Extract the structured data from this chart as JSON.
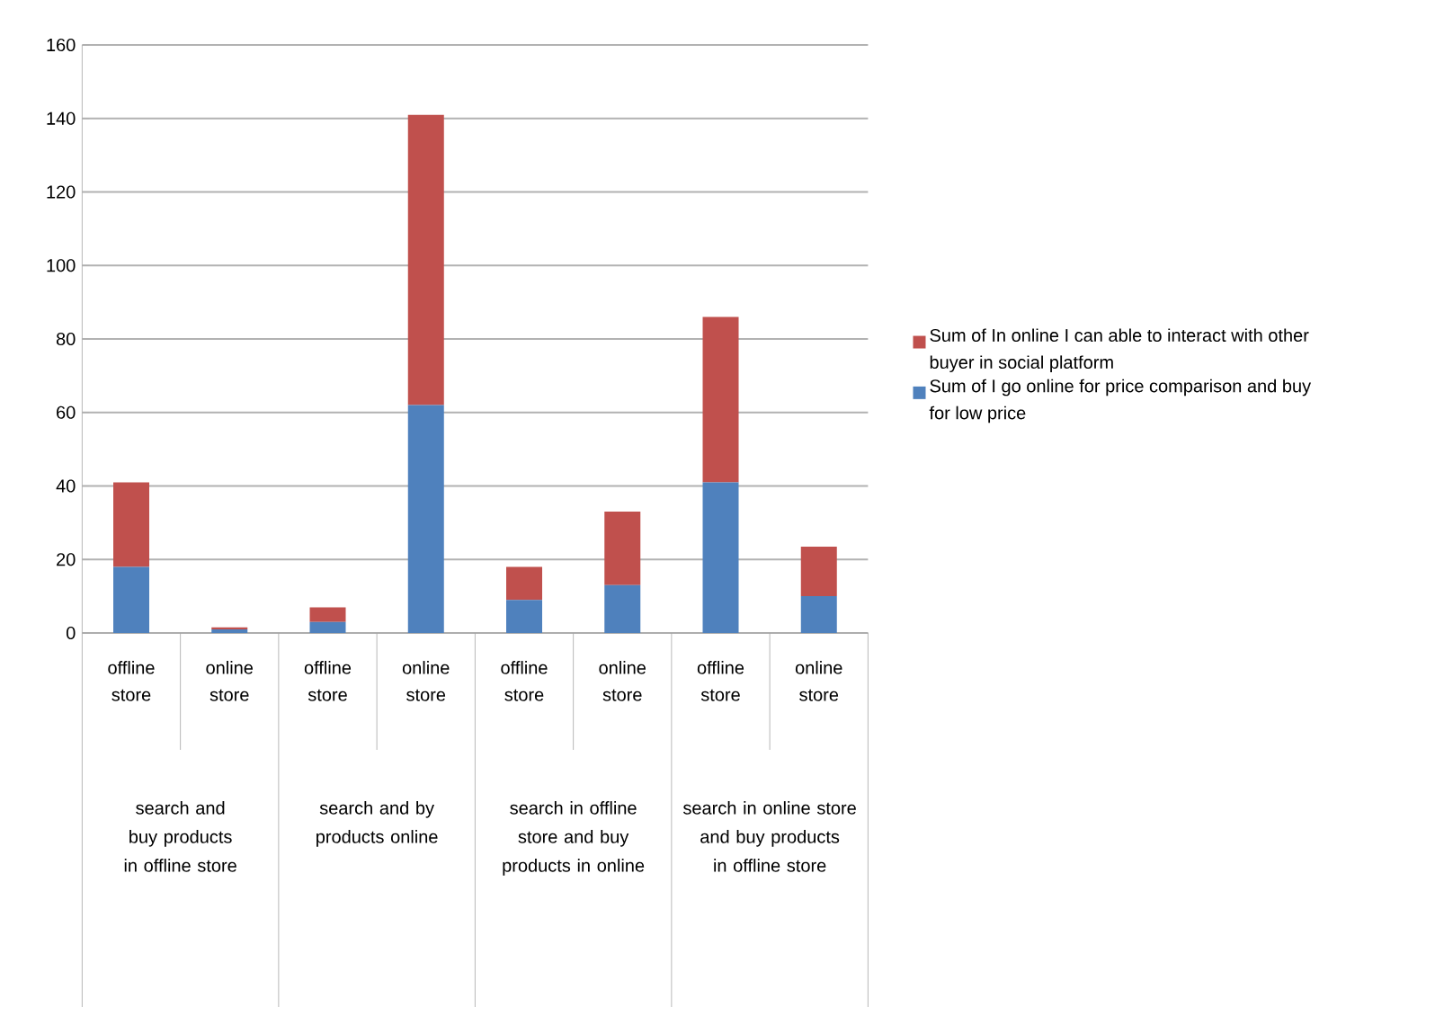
{
  "chart_data": {
    "type": "bar",
    "stacked": true,
    "categories": [
      "offline store",
      "online store",
      "offline store",
      "online store",
      "offline store",
      "online store",
      "offline store",
      "online store"
    ],
    "series": [
      {
        "name": "Sum of I go online for price comparison and buy for low price",
        "color": "#4f81bd",
        "values": [
          18,
          1,
          3,
          62,
          9,
          13,
          41,
          10
        ]
      },
      {
        "name": "Sum of In online I can able to interact with  other buyer in social platform",
        "color": "#c0504d",
        "values": [
          23,
          0.5,
          4,
          79,
          9,
          20,
          45,
          13.5
        ]
      }
    ],
    "annotations": [
      "search and buy products in offline store",
      "search and by products online",
      "search in offline store and buy products in online",
      "search in online store and buy products in offline store"
    ],
    "ylim": [
      0,
      160
    ],
    "yticks": [
      0,
      20,
      40,
      60,
      80,
      100,
      120,
      140,
      160
    ],
    "grid": "y",
    "legend": "right"
  }
}
